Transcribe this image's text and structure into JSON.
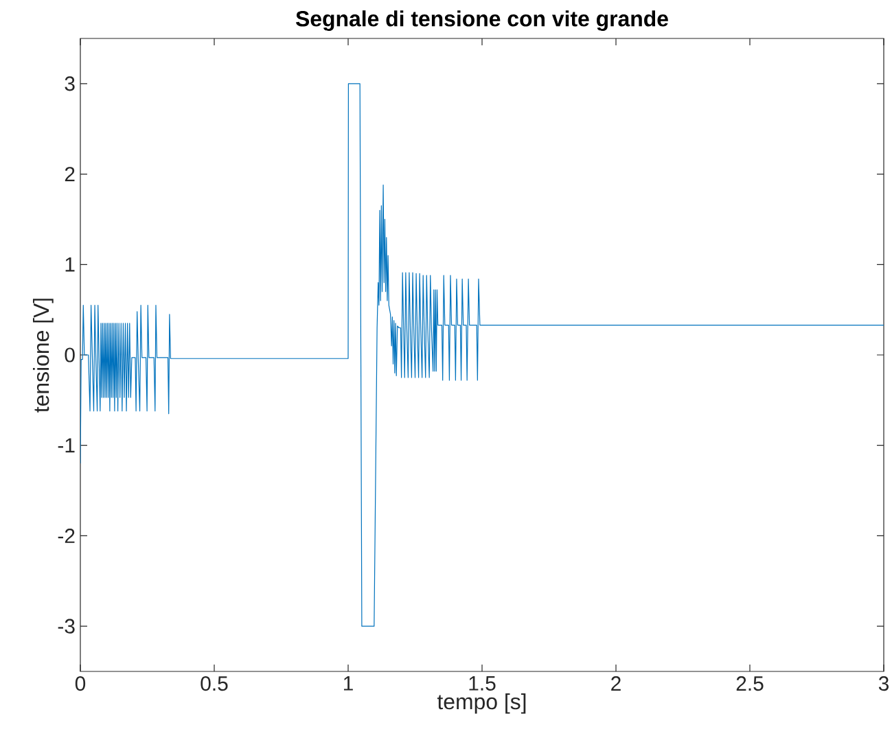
{
  "chart_data": {
    "type": "line",
    "title": "Segnale di tensione con vite grande",
    "xlabel": "tempo [s]",
    "ylabel": "tensione [V]",
    "xlim": [
      0,
      3
    ],
    "ylim": [
      -3.5,
      3.5
    ],
    "xticks": [
      0,
      0.5,
      1,
      1.5,
      2,
      2.5,
      3
    ],
    "yticks": [
      -3,
      -2,
      -1,
      0,
      1,
      2,
      3
    ],
    "color": "#0072bd",
    "x": [
      0,
      0.003,
      0.008,
      0.011,
      0.015,
      0.03,
      0.036,
      0.04,
      0.045,
      0.05,
      0.054,
      0.058,
      0.063,
      0.066,
      0.07,
      0.074,
      0.077,
      0.08,
      0.083,
      0.086,
      0.089,
      0.092,
      0.095,
      0.098,
      0.101,
      0.104,
      0.107,
      0.11,
      0.113,
      0.116,
      0.119,
      0.122,
      0.125,
      0.128,
      0.131,
      0.134,
      0.137,
      0.14,
      0.144,
      0.148,
      0.152,
      0.156,
      0.16,
      0.164,
      0.168,
      0.172,
      0.176,
      0.18,
      0.184,
      0.188,
      0.192,
      0.205,
      0.208,
      0.212,
      0.216,
      0.222,
      0.226,
      0.23,
      0.245,
      0.249,
      0.252,
      0.256,
      0.275,
      0.279,
      0.282,
      0.286,
      0.327,
      0.33,
      0.333,
      0.337,
      1.0,
      1.001,
      1.044,
      1.051,
      1.097,
      1.108,
      1.112,
      1.115,
      1.118,
      1.121,
      1.124,
      1.127,
      1.131,
      1.134,
      1.137,
      1.14,
      1.143,
      1.146,
      1.149,
      1.152,
      1.158,
      1.162,
      1.165,
      1.168,
      1.171,
      1.174,
      1.177,
      1.18,
      1.184,
      1.19,
      1.196,
      1.199,
      1.203,
      1.207,
      1.211,
      1.215,
      1.219,
      1.224,
      1.228,
      1.232,
      1.237,
      1.241,
      1.245,
      1.25,
      1.254,
      1.258,
      1.263,
      1.267,
      1.271,
      1.276,
      1.28,
      1.284,
      1.289,
      1.293,
      1.297,
      1.303,
      1.307,
      1.311,
      1.317,
      1.32,
      1.323,
      1.326,
      1.329,
      1.332,
      1.335,
      1.35,
      1.353,
      1.357,
      1.361,
      1.375,
      1.378,
      1.382,
      1.386,
      1.398,
      1.401,
      1.405,
      1.409,
      1.419,
      1.422,
      1.426,
      1.43,
      1.441,
      1.444,
      1.449,
      1.453,
      1.48,
      1.483,
      1.487,
      1.492,
      3.0
    ],
    "values": [
      -1.2,
      -0.05,
      -0.05,
      0.55,
      0.0,
      0.0,
      -0.62,
      0.55,
      -0.05,
      -0.62,
      0.55,
      -0.05,
      -0.62,
      0.55,
      -0.05,
      -0.62,
      0.35,
      -0.47,
      0.35,
      -0.47,
      0.35,
      -0.47,
      0.35,
      -0.47,
      0.35,
      -0.47,
      0.35,
      -0.62,
      0.35,
      -0.47,
      0.35,
      -0.47,
      0.35,
      -0.62,
      0.35,
      -0.47,
      0.35,
      -0.62,
      0.35,
      -0.47,
      0.35,
      -0.62,
      0.35,
      -0.47,
      0.35,
      -0.62,
      0.35,
      -0.47,
      0.35,
      -0.47,
      -0.03,
      -0.03,
      -0.62,
      0.48,
      -0.03,
      -0.62,
      0.55,
      -0.03,
      -0.03,
      -0.62,
      0.55,
      -0.03,
      -0.03,
      -0.62,
      0.55,
      -0.03,
      -0.03,
      -0.65,
      0.45,
      -0.04,
      -0.04,
      3.0,
      3.0,
      -3.0,
      -3.0,
      0.3,
      0.8,
      0.55,
      1.6,
      0.6,
      1.65,
      0.7,
      1.88,
      0.8,
      1.5,
      0.7,
      1.3,
      0.6,
      1.1,
      0.55,
      0.45,
      0.1,
      0.42,
      -0.1,
      0.38,
      -0.2,
      0.35,
      -0.23,
      0.32,
      0.3,
      0.3,
      -0.25,
      0.91,
      0.3,
      -0.25,
      0.91,
      0.3,
      -0.25,
      0.91,
      0.3,
      -0.25,
      0.91,
      0.3,
      -0.25,
      0.9,
      0.3,
      -0.25,
      0.9,
      0.3,
      -0.25,
      0.88,
      0.3,
      -0.25,
      0.88,
      0.3,
      -0.25,
      0.88,
      0.3,
      -0.18,
      0.72,
      -0.18,
      0.72,
      -0.18,
      0.72,
      0.33,
      0.33,
      -0.28,
      0.88,
      0.33,
      0.33,
      -0.28,
      0.88,
      0.33,
      0.33,
      -0.28,
      0.84,
      0.33,
      0.33,
      -0.28,
      0.84,
      0.33,
      0.33,
      -0.28,
      0.84,
      0.33,
      0.33,
      -0.28,
      0.84,
      0.33,
      0.33
    ]
  }
}
